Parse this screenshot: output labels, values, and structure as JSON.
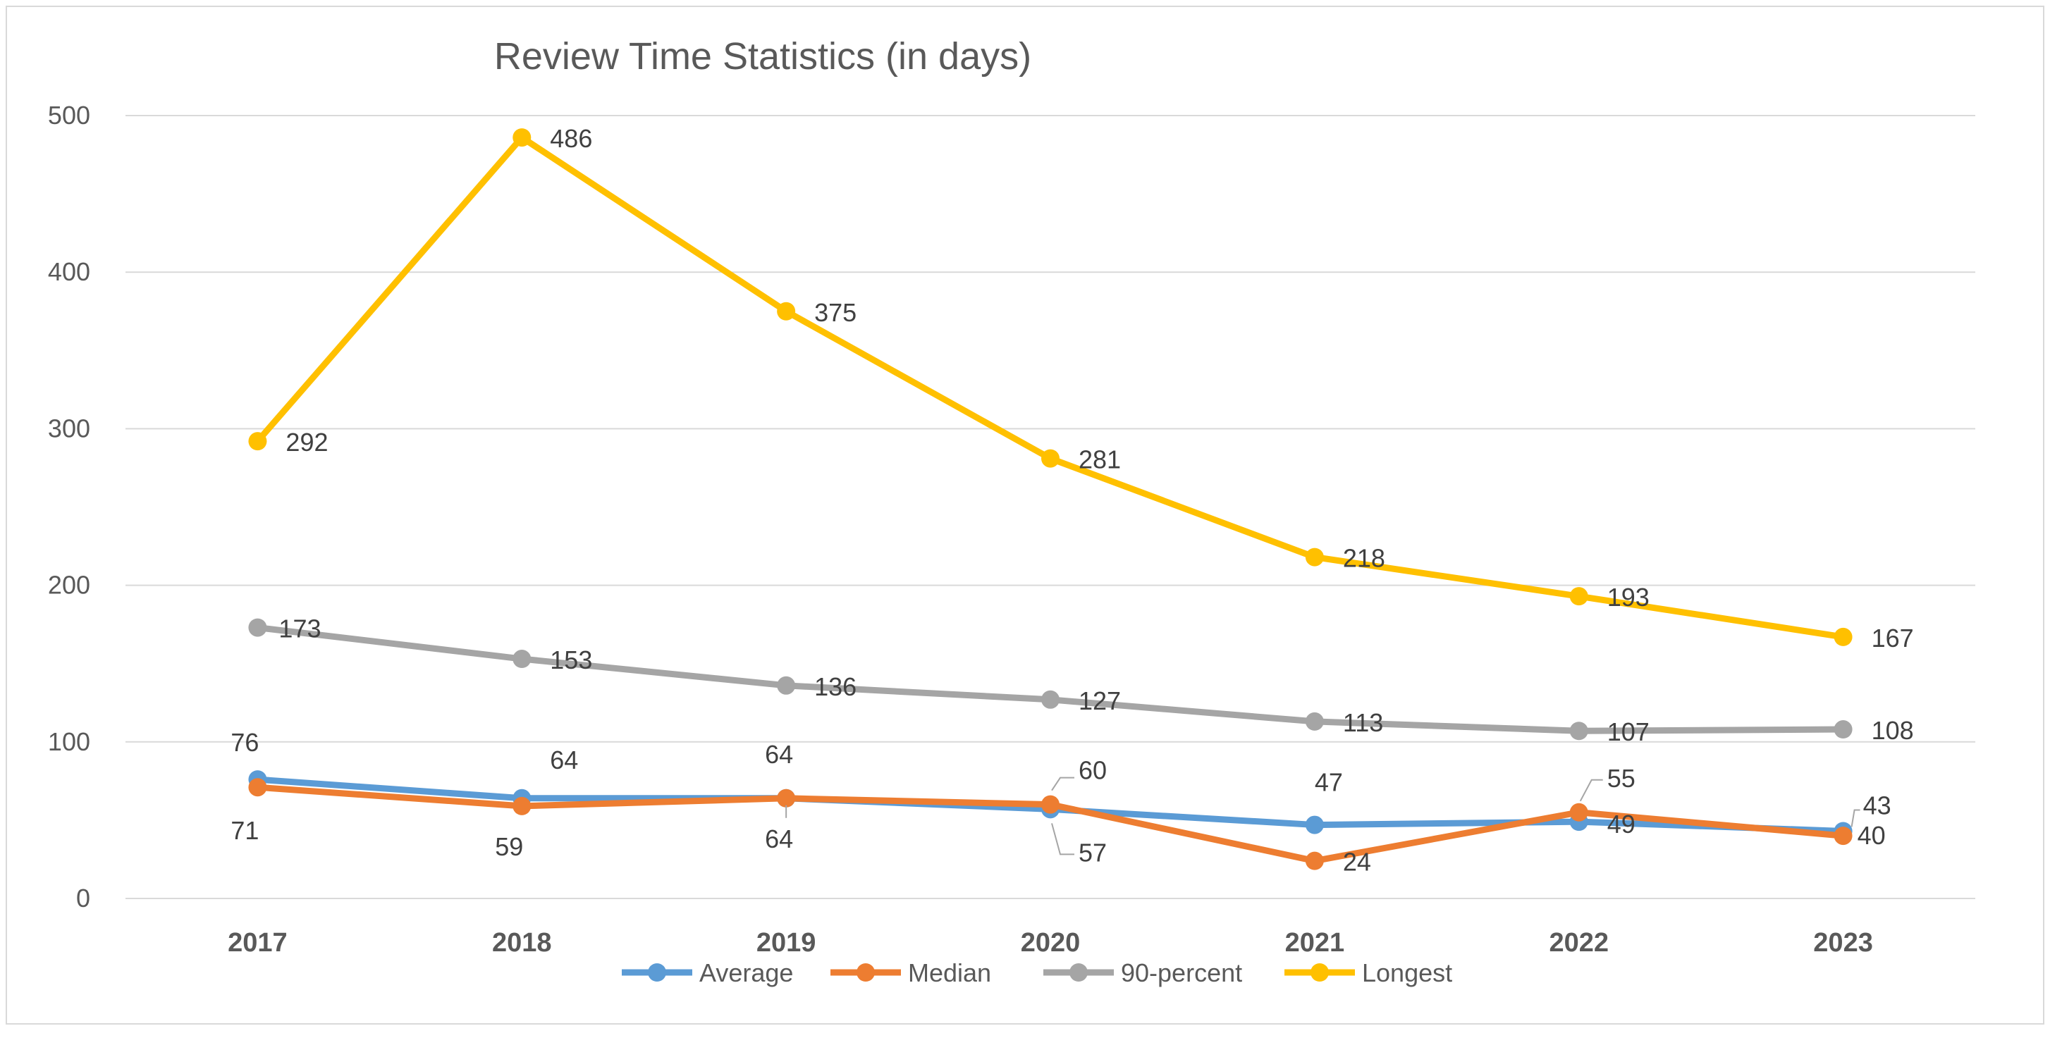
{
  "chart_data": {
    "type": "line",
    "title": "Review Time Statistics (in days)",
    "xlabel": "",
    "ylabel": "",
    "categories": [
      "2017",
      "2018",
      "2019",
      "2020",
      "2021",
      "2022",
      "2023"
    ],
    "ylim": [
      0,
      500
    ],
    "yticks": [
      "0",
      "100",
      "200",
      "300",
      "400",
      "500"
    ],
    "grid": true,
    "legend_position": "bottom",
    "series": [
      {
        "name": "Average",
        "color": "#5b9bd5",
        "values": [
          76,
          64,
          64,
          57,
          47,
          49,
          43
        ]
      },
      {
        "name": "Median",
        "color": "#ed7d31",
        "values": [
          71,
          59,
          64,
          60,
          24,
          55,
          40
        ]
      },
      {
        "name": "90-percent",
        "color": "#a5a5a5",
        "values": [
          173,
          153,
          136,
          127,
          113,
          107,
          108
        ]
      },
      {
        "name": "Longest",
        "color": "#ffc000",
        "values": [
          292,
          486,
          375,
          281,
          218,
          193,
          167
        ]
      }
    ]
  }
}
